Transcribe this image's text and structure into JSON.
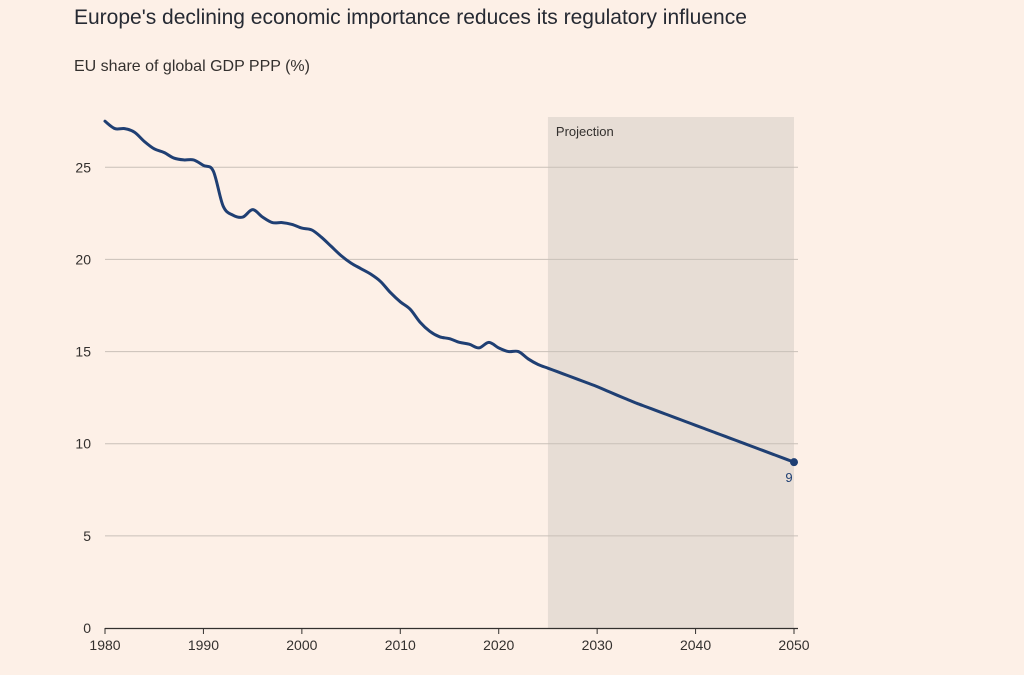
{
  "header": {
    "title": "Europe's declining economic importance reduces its regulatory influence",
    "subtitle": "EU share of global GDP PPP (%)"
  },
  "colors": {
    "background": "#fdf0e7",
    "line": "#1f3f73",
    "projection_shade": "#e7ddd5",
    "gridline": "#c9c0b8",
    "axis": "#33302e"
  },
  "chart_data": {
    "type": "line",
    "title": "Europe's declining economic importance reduces its regulatory influence",
    "ylabel": "EU share of global GDP PPP (%)",
    "xlabel": "",
    "xlim": [
      1980,
      2050
    ],
    "ylim": [
      0,
      28
    ],
    "x_ticks": [
      1980,
      1990,
      2000,
      2010,
      2020,
      2030,
      2040,
      2050
    ],
    "y_ticks": [
      0,
      5,
      10,
      15,
      20,
      25
    ],
    "grid": true,
    "projection": {
      "label": "Projection",
      "from": 2025,
      "to": 2050
    },
    "end_annotation": {
      "x": 2050,
      "y": 9,
      "label": "9"
    },
    "series": [
      {
        "name": "EU share of global GDP PPP",
        "x": [
          1980,
          1981,
          1982,
          1983,
          1984,
          1985,
          1986,
          1987,
          1988,
          1989,
          1990,
          1991,
          1992,
          1993,
          1994,
          1995,
          1996,
          1997,
          1998,
          1999,
          2000,
          2001,
          2002,
          2003,
          2004,
          2005,
          2006,
          2007,
          2008,
          2009,
          2010,
          2011,
          2012,
          2013,
          2014,
          2015,
          2016,
          2017,
          2018,
          2019,
          2020,
          2021,
          2022,
          2023,
          2024,
          2025,
          2026,
          2027,
          2028,
          2029,
          2030,
          2031,
          2032,
          2033,
          2034,
          2035,
          2036,
          2037,
          2038,
          2039,
          2040,
          2041,
          2042,
          2043,
          2044,
          2045,
          2046,
          2047,
          2048,
          2049,
          2050
        ],
        "values": [
          27.5,
          27.1,
          27.1,
          26.9,
          26.4,
          26.0,
          25.8,
          25.5,
          25.4,
          25.4,
          25.1,
          24.8,
          22.9,
          22.4,
          22.3,
          22.7,
          22.3,
          22.0,
          22.0,
          21.9,
          21.7,
          21.6,
          21.2,
          20.7,
          20.2,
          19.8,
          19.5,
          19.2,
          18.8,
          18.2,
          17.7,
          17.3,
          16.6,
          16.1,
          15.8,
          15.7,
          15.5,
          15.4,
          15.2,
          15.5,
          15.2,
          15.0,
          15.0,
          14.6,
          14.3,
          14.1,
          13.9,
          13.7,
          13.5,
          13.3,
          13.1,
          12.87,
          12.64,
          12.42,
          12.2,
          12.0,
          11.8,
          11.6,
          11.4,
          11.2,
          11.0,
          10.8,
          10.6,
          10.4,
          10.2,
          10.0,
          9.8,
          9.6,
          9.4,
          9.2,
          9.0
        ]
      }
    ]
  }
}
